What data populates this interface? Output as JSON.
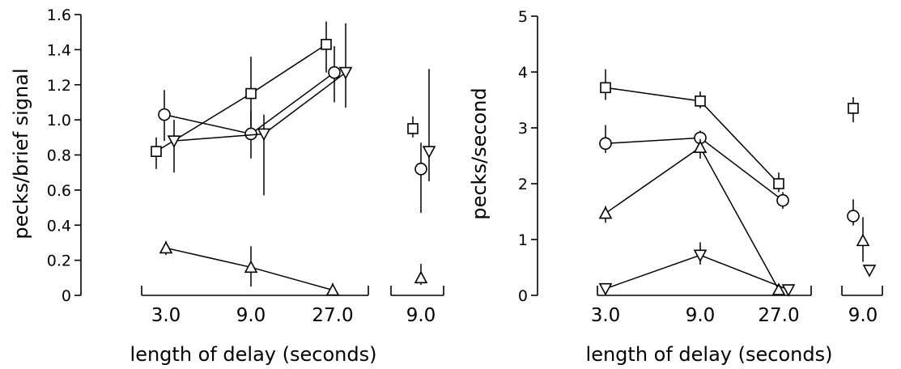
{
  "chart_data": [
    {
      "type": "line",
      "xlabel": "length of delay (seconds)",
      "ylabel": "pecks/brief signal",
      "ylim": [
        0,
        1.6
      ],
      "yticks": [
        "0",
        "0.2",
        "0.4",
        "0.6",
        "0.8",
        "1.0",
        "1.2",
        "1.4",
        "1.6"
      ],
      "x_groups": [
        {
          "categories": [
            "3.0",
            "9.0",
            "27.0"
          ]
        },
        {
          "categories": [
            "9.0"
          ]
        }
      ],
      "series": [
        {
          "marker": "square",
          "connected": true,
          "points": [
            {
              "g": 0,
              "x": "3.0",
              "y": 0.82,
              "lo": 0.72,
              "hi": 0.9
            },
            {
              "g": 0,
              "x": "9.0",
              "y": 1.15,
              "lo": 0.96,
              "hi": 1.36
            },
            {
              "g": 0,
              "x": "27.0",
              "y": 1.43,
              "lo": 1.27,
              "hi": 1.56
            },
            {
              "g": 1,
              "x": "9.0",
              "y": 0.95,
              "lo": 0.9,
              "hi": 1.02
            }
          ]
        },
        {
          "marker": "circle",
          "connected": true,
          "points": [
            {
              "g": 0,
              "x": "3.0",
              "y": 1.03,
              "lo": 0.88,
              "hi": 1.17
            },
            {
              "g": 0,
              "x": "9.0",
              "y": 0.92,
              "lo": 0.78,
              "hi": 1.05
            },
            {
              "g": 0,
              "x": "27.0",
              "y": 1.27,
              "lo": 1.1,
              "hi": 1.42
            },
            {
              "g": 1,
              "x": "9.0",
              "y": 0.72,
              "lo": 0.47,
              "hi": 0.87
            }
          ]
        },
        {
          "marker": "triangle-down",
          "connected": true,
          "points": [
            {
              "g": 0,
              "x": "3.0",
              "y": 0.88,
              "lo": 0.7,
              "hi": 1.0
            },
            {
              "g": 0,
              "x": "9.0",
              "y": 0.92,
              "lo": 0.57,
              "hi": 1.03
            },
            {
              "g": 0,
              "x": "27.0",
              "y": 1.27,
              "lo": 1.07,
              "hi": 1.55
            },
            {
              "g": 1,
              "x": "9.0",
              "y": 0.82,
              "lo": 0.65,
              "hi": 1.29
            }
          ]
        },
        {
          "marker": "triangle-up",
          "connected": true,
          "points": [
            {
              "g": 0,
              "x": "3.0",
              "y": 0.27,
              "lo": 0.23,
              "hi": 0.31
            },
            {
              "g": 0,
              "x": "9.0",
              "y": 0.16,
              "lo": 0.05,
              "hi": 0.28
            },
            {
              "g": 0,
              "x": "27.0",
              "y": 0.03,
              "lo": 0.0,
              "hi": 0.07
            },
            {
              "g": 1,
              "x": "9.0",
              "y": 0.1,
              "lo": 0.06,
              "hi": 0.18
            }
          ]
        }
      ]
    },
    {
      "type": "line",
      "xlabel": "length of  delay (seconds)",
      "ylabel": "pecks/second",
      "ylim": [
        0,
        5
      ],
      "yticks": [
        "0",
        "1",
        "2",
        "3",
        "4",
        "5"
      ],
      "x_groups": [
        {
          "categories": [
            "3.0",
            "9.0",
            "27.0"
          ]
        },
        {
          "categories": [
            "9.0"
          ]
        }
      ],
      "series": [
        {
          "marker": "square",
          "connected": true,
          "points": [
            {
              "g": 0,
              "x": "3.0",
              "y": 3.72,
              "lo": 3.5,
              "hi": 4.05
            },
            {
              "g": 0,
              "x": "9.0",
              "y": 3.48,
              "lo": 3.35,
              "hi": 3.65
            },
            {
              "g": 0,
              "x": "27.0",
              "y": 2.0,
              "lo": 1.85,
              "hi": 2.2
            },
            {
              "g": 1,
              "x": "9.0",
              "y": 3.35,
              "lo": 3.1,
              "hi": 3.55
            }
          ]
        },
        {
          "marker": "circle",
          "connected": true,
          "points": [
            {
              "g": 0,
              "x": "3.0",
              "y": 2.72,
              "lo": 2.55,
              "hi": 3.05
            },
            {
              "g": 0,
              "x": "9.0",
              "y": 2.82,
              "lo": 2.6,
              "hi": 2.95
            },
            {
              "g": 0,
              "x": "27.0",
              "y": 1.7,
              "lo": 1.55,
              "hi": 1.85
            },
            {
              "g": 1,
              "x": "9.0",
              "y": 1.42,
              "lo": 1.25,
              "hi": 1.72
            }
          ]
        },
        {
          "marker": "triangle-up",
          "connected": true,
          "points": [
            {
              "g": 0,
              "x": "3.0",
              "y": 1.47,
              "lo": 1.3,
              "hi": 1.6
            },
            {
              "g": 0,
              "x": "9.0",
              "y": 2.65,
              "lo": 2.45,
              "hi": 2.8
            },
            {
              "g": 0,
              "x": "27.0",
              "y": 0.1,
              "lo": 0.05,
              "hi": 0.15
            },
            {
              "g": 1,
              "x": "9.0",
              "y": 0.98,
              "lo": 0.6,
              "hi": 1.4
            }
          ]
        },
        {
          "marker": "triangle-down",
          "connected": true,
          "points": [
            {
              "g": 0,
              "x": "3.0",
              "y": 0.12,
              "lo": 0.08,
              "hi": 0.16
            },
            {
              "g": 0,
              "x": "9.0",
              "y": 0.72,
              "lo": 0.55,
              "hi": 0.95
            },
            {
              "g": 0,
              "x": "27.0",
              "y": 0.1,
              "lo": 0.05,
              "hi": 0.15
            },
            {
              "g": 1,
              "x": "9.0",
              "y": 0.45,
              "lo": 0.4,
              "hi": 0.5
            }
          ]
        }
      ]
    }
  ]
}
